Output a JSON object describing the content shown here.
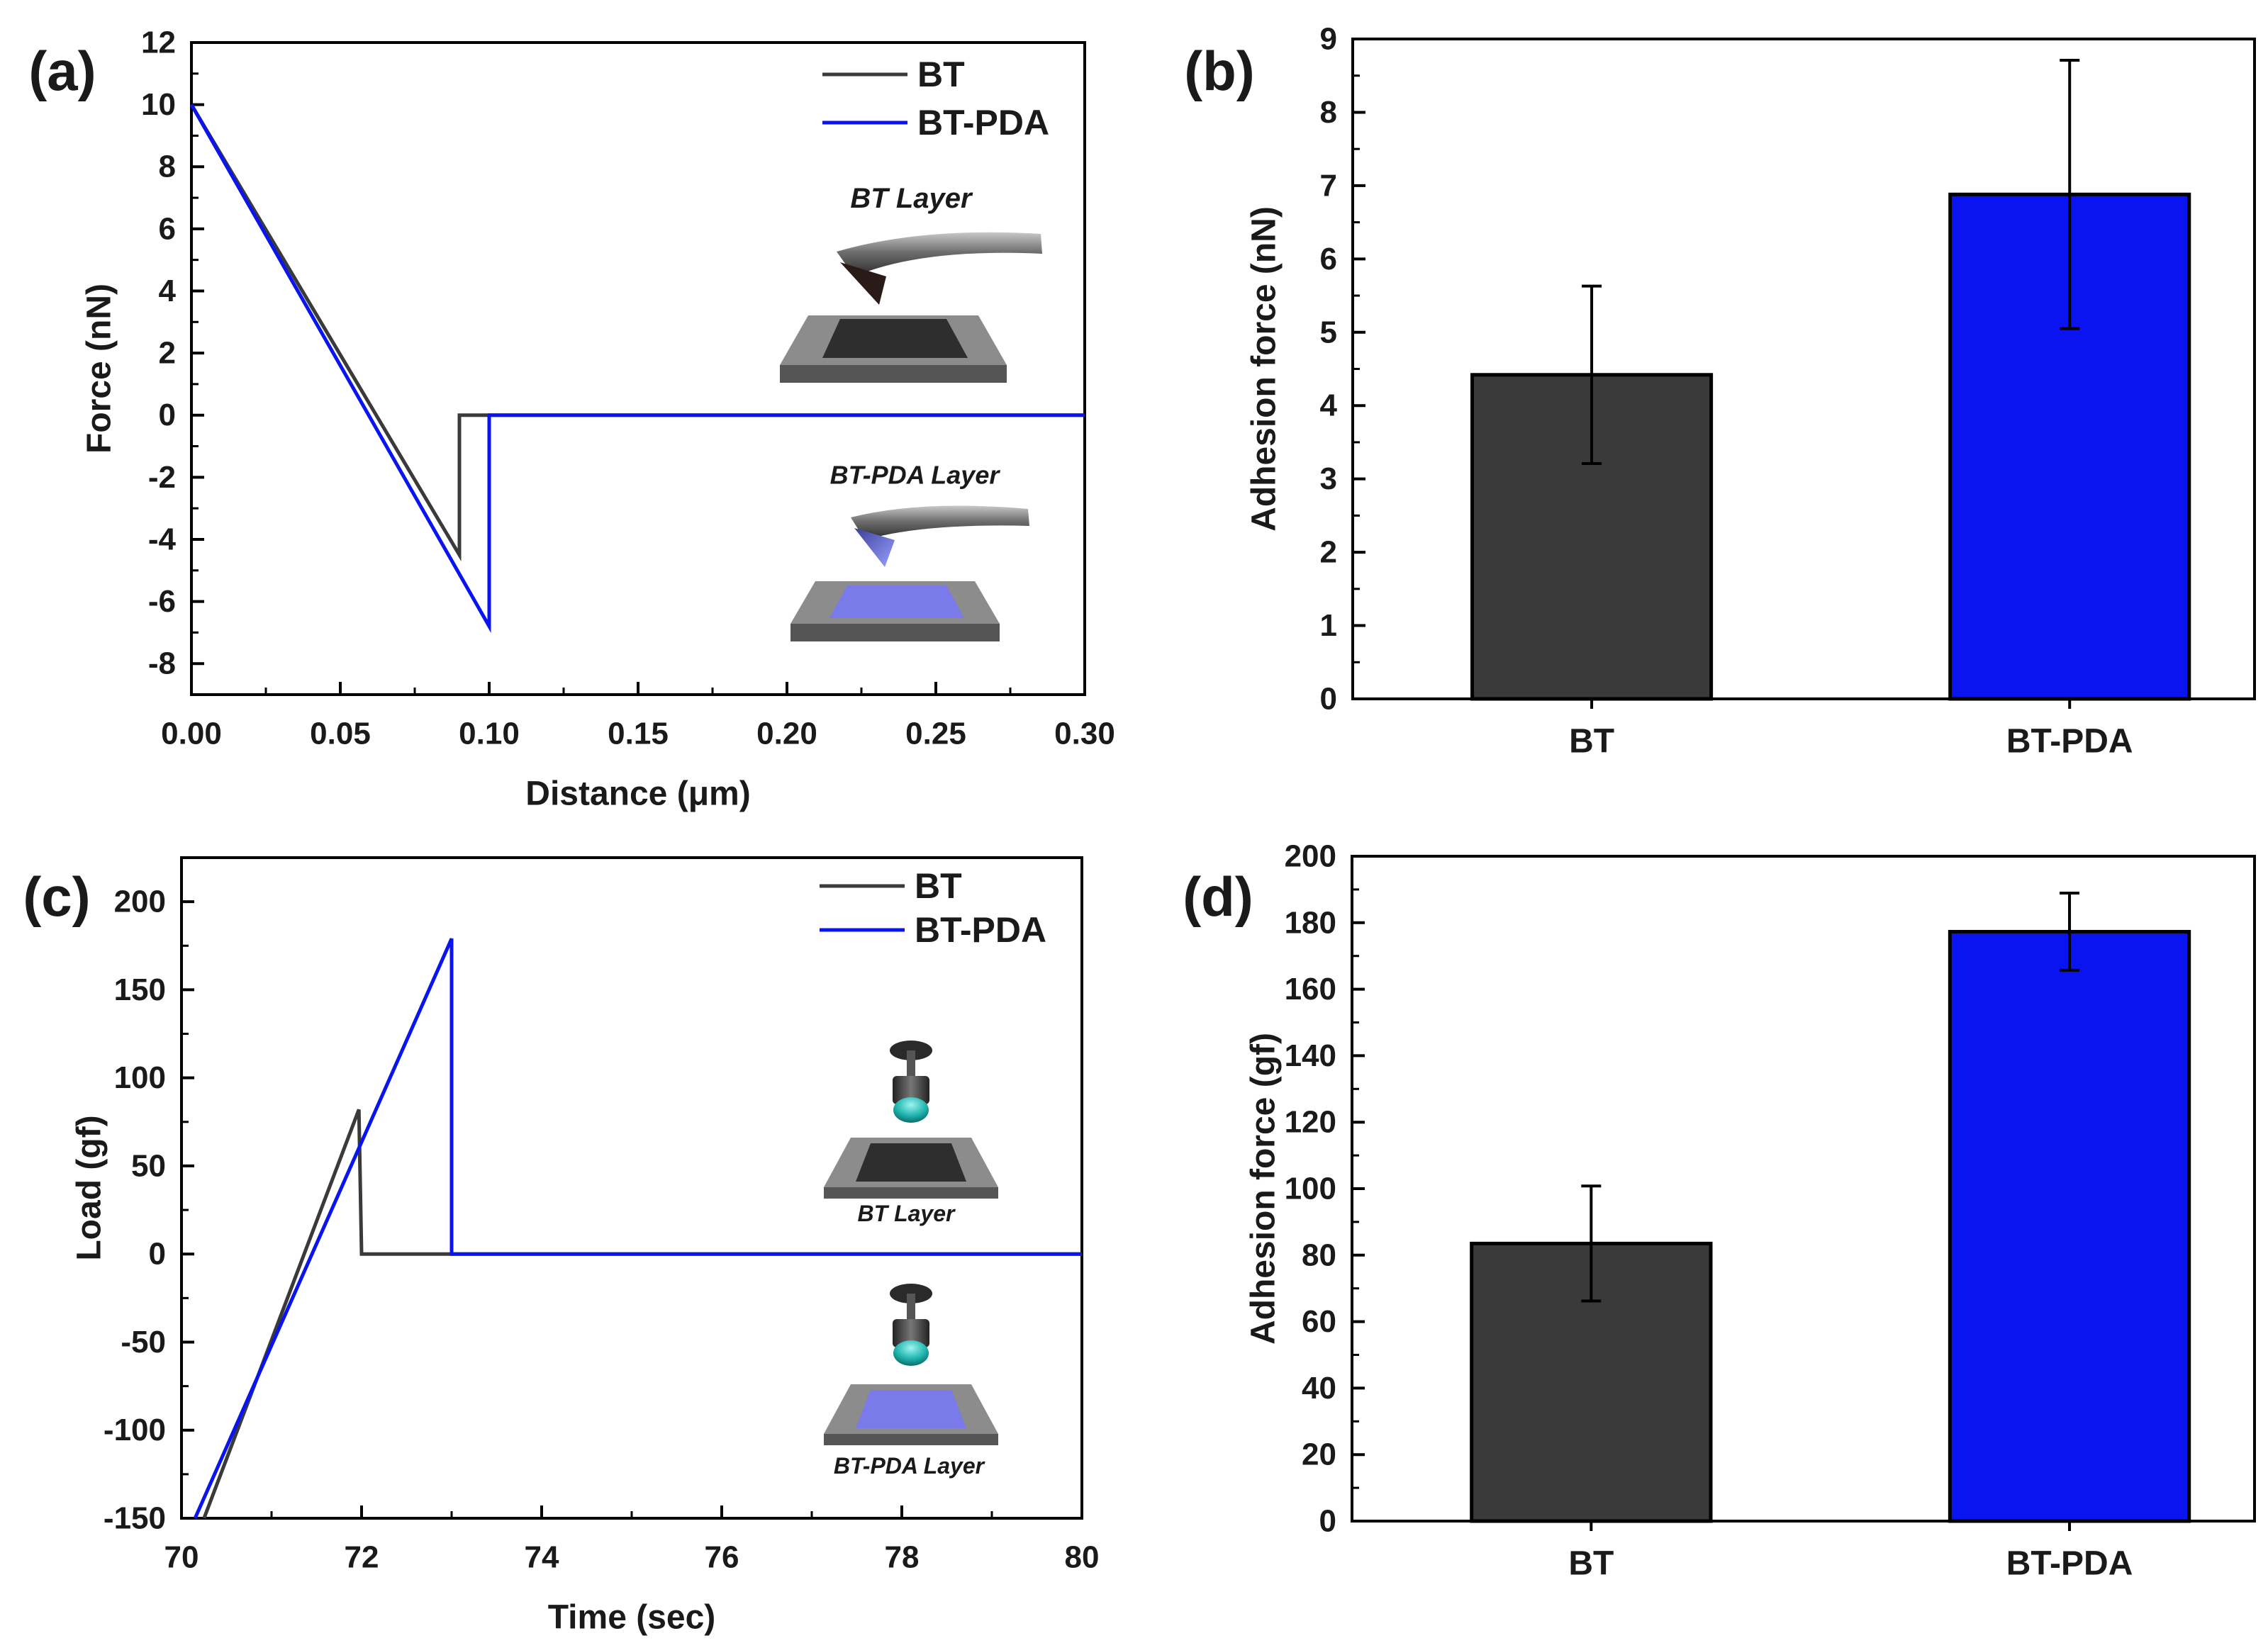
{
  "colors": {
    "bt": "#3a3a3a",
    "bt_pda": "#0a14f0",
    "axis": "#000000"
  },
  "chart_data": [
    {
      "id": "a",
      "panel_label": "(a)",
      "type": "line",
      "xlabel": "Distance (μm)",
      "ylabel": "Force (nN)",
      "xlim": [
        0,
        0.3
      ],
      "ylim": [
        -9,
        12
      ],
      "x_ticks": [
        0,
        0.05,
        0.1,
        0.15,
        0.2,
        0.25,
        0.3
      ],
      "x_tick_labels": [
        "0.00",
        "0.05",
        "0.10",
        "0.15",
        "0.20",
        "0.25",
        "0.30"
      ],
      "y_ticks": [
        -8,
        -6,
        -4,
        -2,
        0,
        2,
        4,
        6,
        8,
        10,
        12
      ],
      "y_tick_labels": [
        "-8",
        "-6",
        "-4",
        "-2",
        "0",
        "2",
        "4",
        "6",
        "8",
        "10",
        "12"
      ],
      "legend_position": "top-right",
      "series": [
        {
          "name": "BT",
          "color_key": "bt",
          "points": [
            [
              0,
              10
            ],
            [
              0.09,
              -4.5
            ],
            [
              0.09,
              0
            ],
            [
              0.3,
              0
            ]
          ]
        },
        {
          "name": "BT-PDA",
          "color_key": "bt_pda",
          "points": [
            [
              0,
              10
            ],
            [
              0.1,
              -6.8
            ],
            [
              0.1,
              0
            ],
            [
              0.3,
              0
            ]
          ]
        }
      ],
      "annotations": [
        "BT Layer",
        "BT-PDA Layer"
      ]
    },
    {
      "id": "b",
      "panel_label": "(b)",
      "type": "bar",
      "xlabel": "",
      "ylabel": "Adhesion force (nN)",
      "ylim": [
        0,
        9
      ],
      "y_ticks": [
        0,
        1,
        2,
        3,
        4,
        5,
        6,
        7,
        8,
        9
      ],
      "y_tick_labels": [
        "0",
        "1",
        "2",
        "3",
        "4",
        "5",
        "6",
        "7",
        "8",
        "9"
      ],
      "categories": [
        "BT",
        "BT-PDA"
      ],
      "values": [
        4.42,
        6.88
      ],
      "errors": [
        1.21,
        1.83
      ],
      "color_keys": [
        "bt",
        "bt_pda"
      ]
    },
    {
      "id": "c",
      "panel_label": "(c)",
      "type": "line",
      "xlabel": "Time (sec)",
      "ylabel": "Load (gf)",
      "xlim": [
        70,
        80
      ],
      "ylim": [
        -150,
        225
      ],
      "x_ticks": [
        70,
        72,
        74,
        76,
        78,
        80
      ],
      "x_tick_labels": [
        "70",
        "72",
        "74",
        "76",
        "78",
        "80"
      ],
      "y_ticks": [
        -150,
        -100,
        -50,
        0,
        50,
        100,
        150,
        200
      ],
      "y_tick_labels": [
        "-150",
        "-100",
        "-50",
        "0",
        "50",
        "100",
        "150",
        "200"
      ],
      "legend_position": "top-right",
      "series": [
        {
          "name": "BT",
          "color_key": "bt",
          "points": [
            [
              70.25,
              -150
            ],
            [
              71.97,
              82
            ],
            [
              72.0,
              0
            ],
            [
              80,
              0
            ]
          ]
        },
        {
          "name": "BT-PDA",
          "color_key": "bt_pda",
          "points": [
            [
              70.15,
              -150
            ],
            [
              73.0,
              179
            ],
            [
              73.0,
              0
            ],
            [
              80,
              0
            ]
          ]
        }
      ],
      "annotations": [
        "BT Layer",
        "BT-PDA Layer"
      ]
    },
    {
      "id": "d",
      "panel_label": "(d)",
      "type": "bar",
      "xlabel": "",
      "ylabel": "Adhesion force (gf)",
      "ylim": [
        0,
        200
      ],
      "y_ticks": [
        0,
        20,
        40,
        60,
        80,
        100,
        120,
        140,
        160,
        180,
        200
      ],
      "y_tick_labels": [
        "0",
        "20",
        "40",
        "60",
        "80",
        "100",
        "120",
        "140",
        "160",
        "180",
        "200"
      ],
      "categories": [
        "BT",
        "BT-PDA"
      ],
      "values": [
        83.5,
        177.3
      ],
      "errors": [
        17.3,
        11.6
      ],
      "color_keys": [
        "bt",
        "bt_pda"
      ]
    }
  ]
}
